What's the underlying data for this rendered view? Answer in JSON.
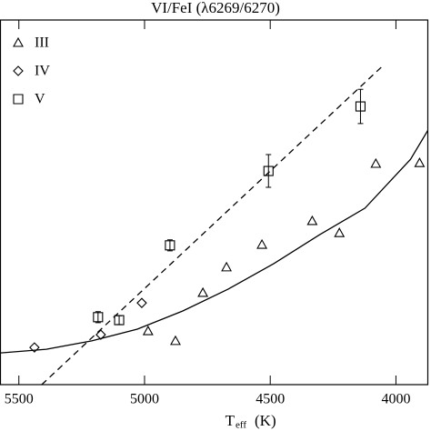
{
  "chart_data": {
    "type": "scatter",
    "title": "VI/FeI (λ6269/6270)",
    "x_label": {
      "main": "T",
      "sub": "eff",
      "unit": "(K)"
    },
    "xlim": [
      5575,
      3875
    ],
    "ylim": [
      0,
      1
    ],
    "xticks": [
      5500,
      5000,
      4500,
      4000
    ],
    "legend": "upper left",
    "series": [
      {
        "name": "III",
        "marker": "triangle",
        "x": [
          4674,
          4768,
          4877,
          4986,
          4533,
          4333,
          4225,
          4080,
          3906
        ],
        "values": [
          0.322,
          0.252,
          0.12,
          0.147,
          0.384,
          0.449,
          0.416,
          0.606,
          0.608
        ]
      },
      {
        "name": "IV",
        "marker": "diamond",
        "x": [
          5438,
          5174,
          5011
        ],
        "values": [
          0.102,
          0.137,
          0.224
        ]
      },
      {
        "name": "V",
        "marker": "square",
        "x": [
          5185,
          5101,
          4899,
          4507,
          4141
        ],
        "values": [
          0.185,
          0.177,
          0.382,
          0.586,
          0.763
        ],
        "errors": [
          0.015,
          0.012,
          0.015,
          0.045,
          0.047
        ]
      }
    ],
    "fits": [
      {
        "style": "solid",
        "x": [
          5572,
          5391,
          5210,
          5029,
          4848,
          4667,
          4486,
          4304,
          4123,
          3942,
          3870
        ],
        "values": [
          0.087,
          0.097,
          0.12,
          0.152,
          0.202,
          0.262,
          0.332,
          0.411,
          0.484,
          0.618,
          0.701
        ]
      },
      {
        "style": "dashed",
        "x": [
          5409,
          4051
        ],
        "values": [
          0,
          0.875
        ]
      }
    ]
  }
}
